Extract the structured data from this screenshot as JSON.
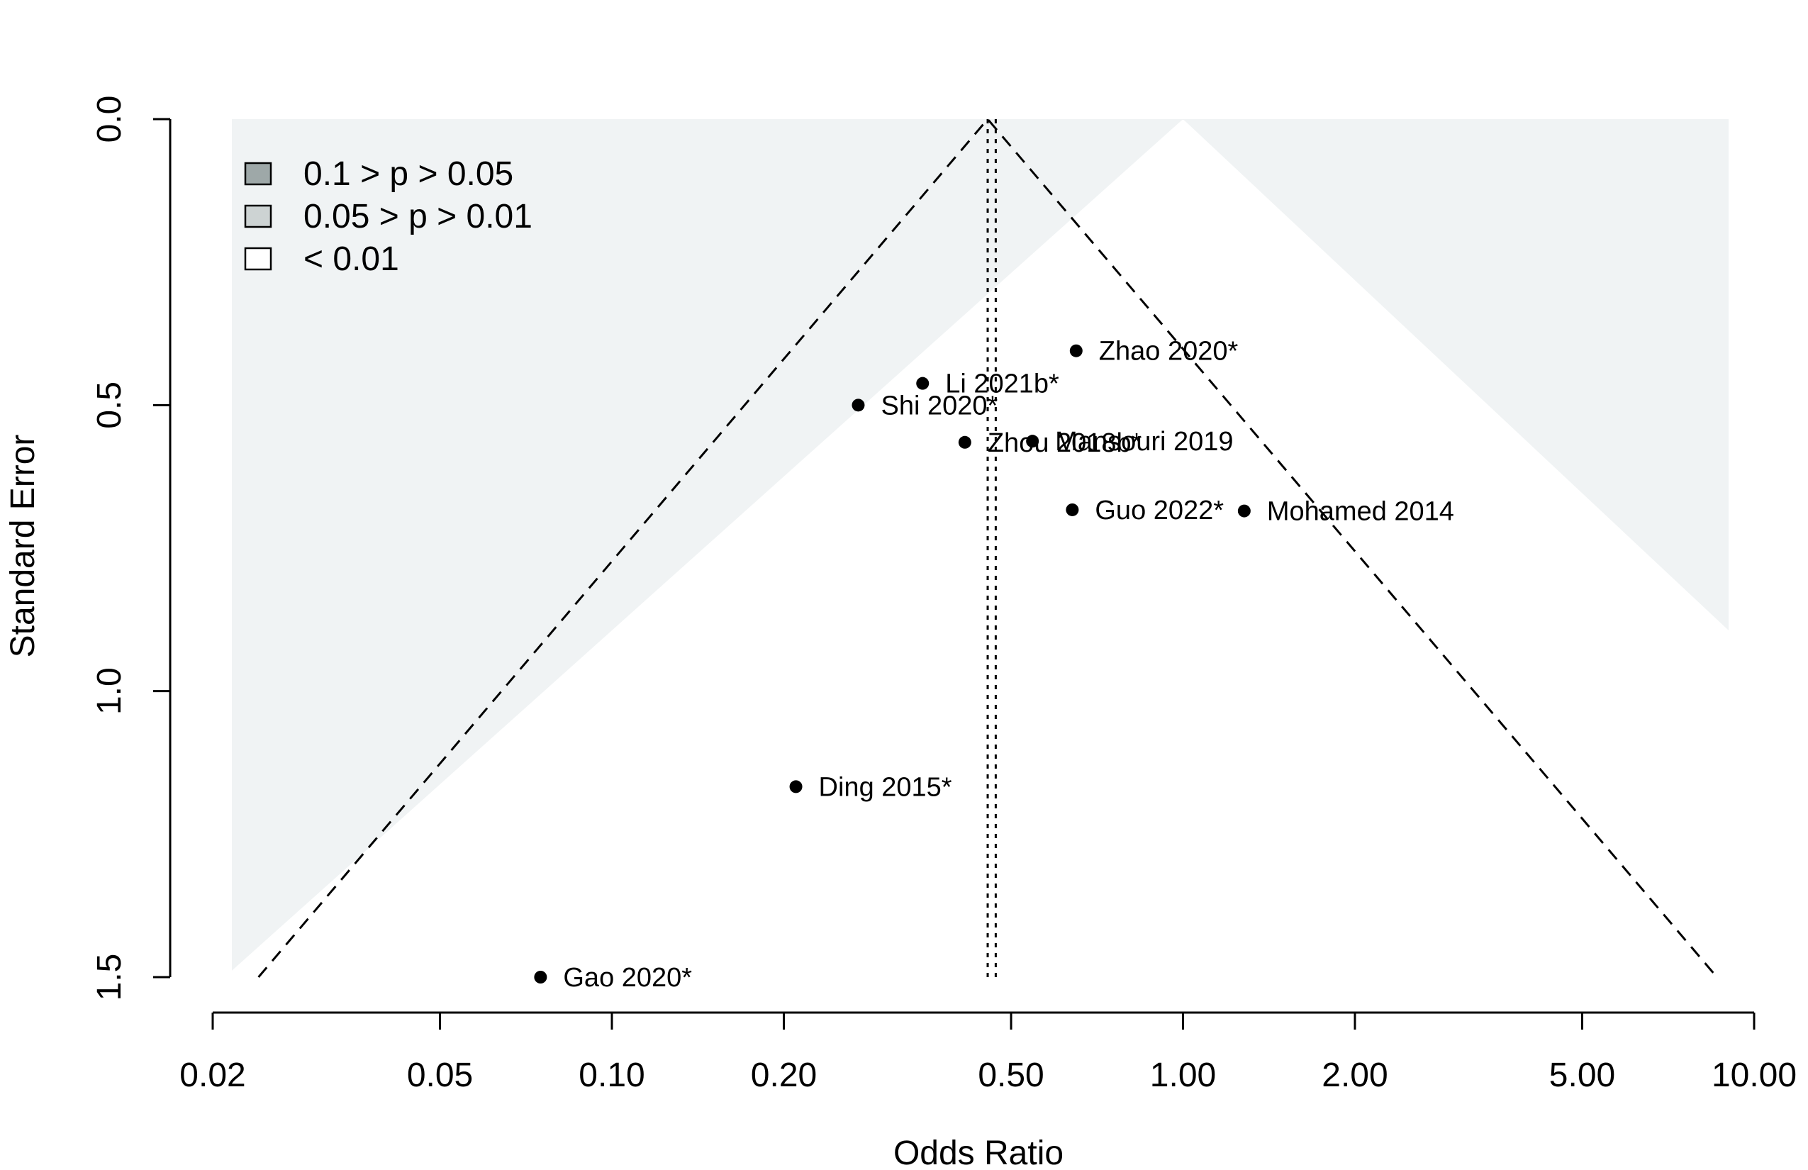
{
  "chart_data": {
    "type": "scatter",
    "subtype": "contour-enhanced funnel plot",
    "xlabel": "Odds Ratio",
    "ylabel": "Standard Error",
    "x_scale": "log",
    "xlim": [
      0.02,
      10.0
    ],
    "ylim": [
      0.0,
      1.5
    ],
    "y_reversed": true,
    "x_ticks": [
      "0.02",
      "0.05",
      "0.10",
      "0.20",
      "0.50",
      "1.00",
      "2.00",
      "5.00",
      "10.00"
    ],
    "x_tick_values": [
      0.02,
      0.05,
      0.1,
      0.2,
      0.5,
      1.0,
      2.0,
      5.0,
      10.0
    ],
    "y_ticks": [
      "0.0",
      "0.5",
      "1.0",
      "1.5"
    ],
    "y_tick_values": [
      0.0,
      0.5,
      1.0,
      1.5
    ],
    "legend": {
      "position": "top-left",
      "entries": [
        {
          "label": "0.1 > p > 0.05",
          "color": "#9ea8a8"
        },
        {
          "label": "0.05 > p > 0.01",
          "color": "#cdd3d3"
        },
        {
          "label": "< 0.01",
          "color": "#ffffff"
        }
      ]
    },
    "colors": {
      "background_region": "#f0f3f4",
      "contour_01_005": "#9ea8a8",
      "contour_005_001": "#cdd3d3",
      "contour_lt001": "#ffffff"
    },
    "funnel_center_or": 1.0,
    "pooled_estimate_or": 0.455,
    "adjusted_estimate_or": 0.47,
    "points": [
      {
        "label": "Zhao 2020*",
        "or": 0.65,
        "se": 0.405
      },
      {
        "label": "Li 2021b*",
        "or": 0.35,
        "se": 0.462
      },
      {
        "label": "Shi 2020*",
        "or": 0.27,
        "se": 0.5
      },
      {
        "label": "Zhou 2018b*",
        "or": 0.415,
        "se": 0.565
      },
      {
        "label": "Mansouri 2019",
        "or": 0.545,
        "se": 0.563
      },
      {
        "label": "Guo 2022*",
        "or": 0.64,
        "se": 0.683
      },
      {
        "label": "Mohamed 2014",
        "or": 1.28,
        "se": 0.685
      },
      {
        "label": "Ding 2015*",
        "or": 0.21,
        "se": 1.167
      },
      {
        "label": "Gao 2020*",
        "or": 0.075,
        "se": 1.5
      }
    ]
  }
}
